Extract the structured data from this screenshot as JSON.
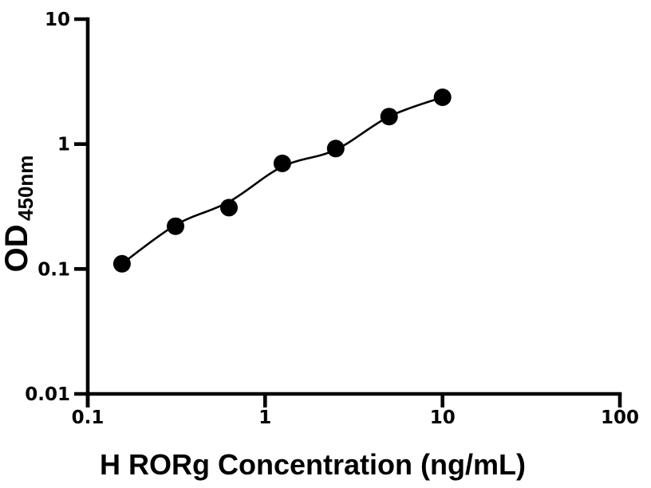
{
  "chart_data": {
    "type": "scatter",
    "title": "",
    "xlabel": "H RORg Concentration (ng/mL)",
    "ylabel_main": "OD",
    "ylabel_sub": "450nm",
    "x_scale": "log",
    "y_scale": "log",
    "x_range": [
      0.1,
      100
    ],
    "y_range": [
      0.01,
      10
    ],
    "x_ticks": {
      "values": [
        0.1,
        1,
        10,
        100
      ],
      "labels": [
        "0.1",
        "1",
        "10",
        "100"
      ]
    },
    "y_ticks": {
      "values": [
        0.01,
        0.1,
        1,
        10
      ],
      "labels": [
        "0.01",
        "0.1",
        "1",
        "10"
      ]
    },
    "grid": false,
    "legend": false,
    "series": [
      {
        "name": "standard-points",
        "type": "scatter",
        "marker": "filled-circle",
        "x": [
          0.156,
          0.3125,
          0.625,
          1.25,
          2.5,
          5,
          10
        ],
        "y": [
          0.11,
          0.22,
          0.31,
          0.7,
          0.92,
          1.66,
          2.37
        ]
      },
      {
        "name": "fit-curve",
        "type": "line",
        "x": [
          0.156,
          0.3125,
          0.625,
          1.25,
          2.5,
          5,
          10
        ],
        "y": [
          0.11,
          0.225,
          0.345,
          0.66,
          0.9,
          1.66,
          2.37
        ]
      }
    ],
    "colors": {
      "points": "#000000",
      "curve": "#000000",
      "axis": "#000000",
      "text": "#000000",
      "background": "#ffffff"
    }
  }
}
